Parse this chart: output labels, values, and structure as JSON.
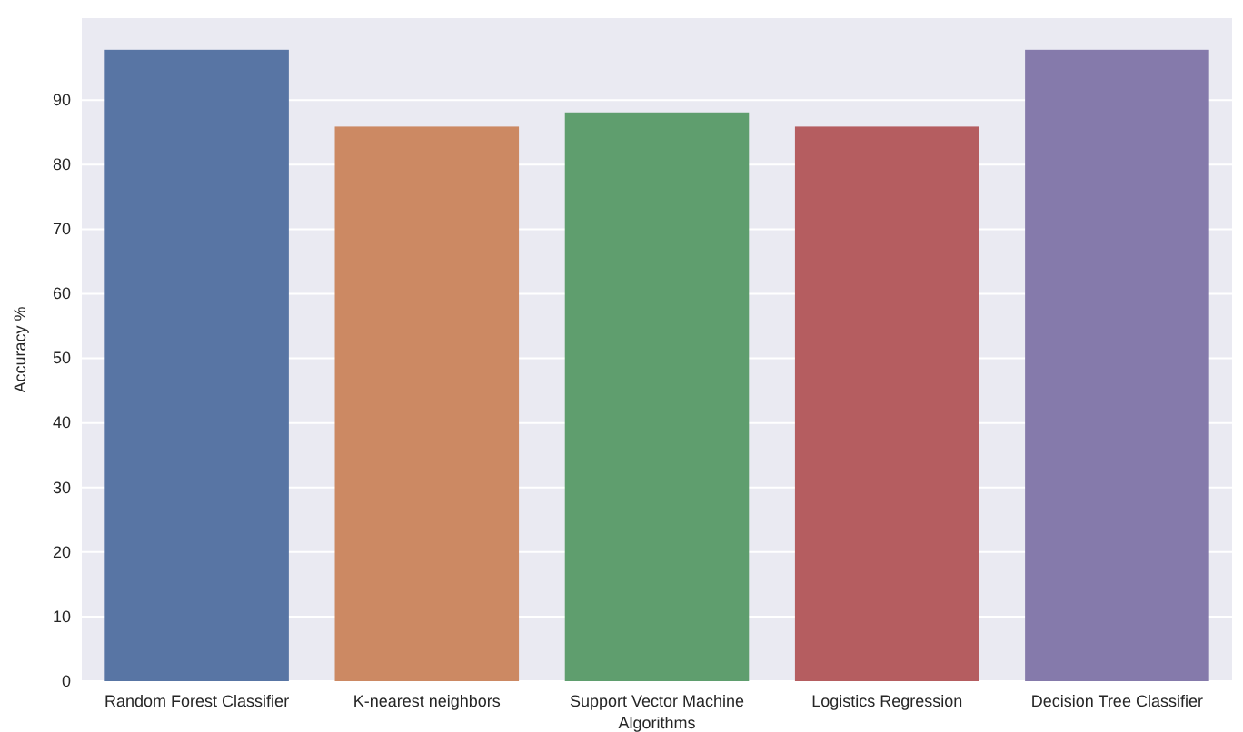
{
  "chart_data": {
    "type": "bar",
    "xlabel": "Algorithms",
    "ylabel": "Accuracy %",
    "categories": [
      "Random Forest Classifier",
      "K-nearest neighbors",
      "Support Vector Machine",
      "Logistics Regression",
      "Decision Tree Classifier"
    ],
    "values": [
      97.8,
      85.9,
      88.1,
      85.9,
      97.8
    ],
    "colors": [
      "#5875a4",
      "#cc8963",
      "#5f9e6e",
      "#b55d60",
      "#857aab"
    ],
    "ylim": [
      0,
      102.7
    ],
    "yticks": [
      0,
      10,
      20,
      30,
      40,
      50,
      60,
      70,
      80,
      90
    ],
    "grid": "y"
  }
}
